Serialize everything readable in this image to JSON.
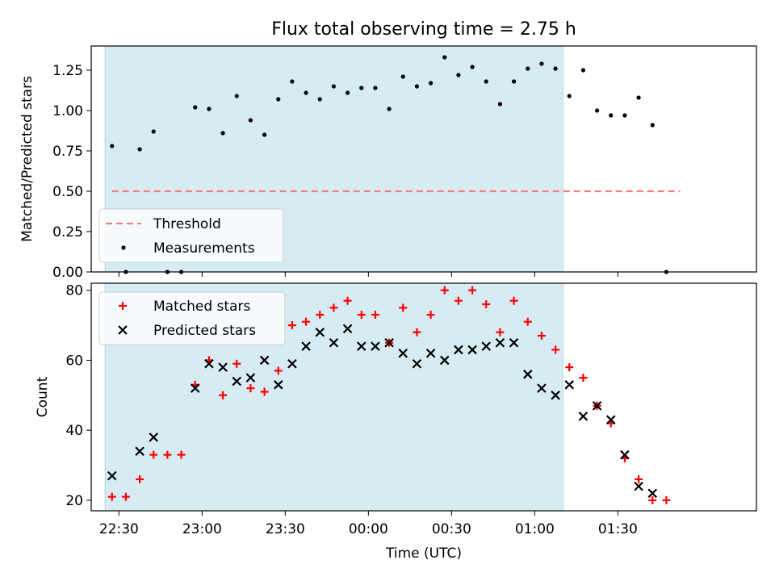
{
  "title": "Flux total observing time = 2.75 h",
  "x_ticks": [
    "22:30",
    "23:00",
    "23:30",
    "00:00",
    "00:30",
    "01:00",
    "01:30"
  ],
  "xlabel": "Time (UTC)",
  "colors": {
    "shade": "#add8e6",
    "threshold": "#f08080",
    "matched": "#ff0000",
    "predicted": "#000000",
    "measure": "#000000"
  },
  "chart_data": [
    {
      "type": "scatter",
      "ylabel": "Matched/Predicted stars",
      "ylim": [
        0,
        1.4
      ],
      "y_ticks": [
        "0.00",
        "0.25",
        "0.50",
        "0.75",
        "1.00",
        "1.25"
      ],
      "x_unit": "minutes after 22:30 UTC",
      "xlim": [
        -10,
        230
      ],
      "shaded_region": [
        -5,
        160.2
      ],
      "legend": {
        "position": "lower-left",
        "entries": [
          "Threshold",
          "Measurements"
        ]
      },
      "threshold": {
        "name": "Threshold",
        "y": 0.5,
        "x_range": [
          -2.5,
          202.5
        ]
      },
      "measurements": {
        "name": "Measurements",
        "points": [
          [
            -2.5,
            0.78
          ],
          [
            2.5,
            0.0
          ],
          [
            7.5,
            0.76
          ],
          [
            12.5,
            0.87
          ],
          [
            17.5,
            0.0
          ],
          [
            22.5,
            0.0
          ],
          [
            27.5,
            1.02
          ],
          [
            32.5,
            1.01
          ],
          [
            37.5,
            0.86
          ],
          [
            42.5,
            1.09
          ],
          [
            47.5,
            0.94
          ],
          [
            52.5,
            0.85
          ],
          [
            57.5,
            1.07
          ],
          [
            62.5,
            1.18
          ],
          [
            67.5,
            1.11
          ],
          [
            72.5,
            1.07
          ],
          [
            77.5,
            1.15
          ],
          [
            82.5,
            1.11
          ],
          [
            87.5,
            1.14
          ],
          [
            92.5,
            1.14
          ],
          [
            97.5,
            1.01
          ],
          [
            102.5,
            1.21
          ],
          [
            107.5,
            1.15
          ],
          [
            112.5,
            1.17
          ],
          [
            117.5,
            1.33
          ],
          [
            122.5,
            1.22
          ],
          [
            127.5,
            1.27
          ],
          [
            132.5,
            1.18
          ],
          [
            137.5,
            1.04
          ],
          [
            142.5,
            1.18
          ],
          [
            147.5,
            1.26
          ],
          [
            152.5,
            1.29
          ],
          [
            157.5,
            1.26
          ],
          [
            162.5,
            1.09
          ],
          [
            167.5,
            1.25
          ],
          [
            172.5,
            1.0
          ],
          [
            177.5,
            0.97
          ],
          [
            182.5,
            0.97
          ],
          [
            187.5,
            1.08
          ],
          [
            192.5,
            0.91
          ],
          [
            197.5,
            0.0
          ]
        ]
      }
    },
    {
      "type": "scatter",
      "ylabel": "Count",
      "ylim": [
        17,
        82
      ],
      "y_ticks": [
        "20",
        "40",
        "60",
        "80"
      ],
      "x_unit": "minutes after 22:30 UTC",
      "xlim": [
        -10,
        230
      ],
      "shaded_region": [
        -5,
        160.2
      ],
      "legend": {
        "position": "upper-left",
        "entries": [
          "Matched stars",
          "Predicted stars"
        ]
      },
      "series": [
        {
          "name": "Matched stars",
          "marker": "+",
          "points": [
            [
              -2.5,
              21
            ],
            [
              2.5,
              21
            ],
            [
              7.5,
              26
            ],
            [
              12.5,
              33
            ],
            [
              17.5,
              33
            ],
            [
              22.5,
              33
            ],
            [
              27.5,
              53
            ],
            [
              32.5,
              60
            ],
            [
              37.5,
              50
            ],
            [
              42.5,
              59
            ],
            [
              47.5,
              52
            ],
            [
              52.5,
              51
            ],
            [
              57.5,
              57
            ],
            [
              62.5,
              70
            ],
            [
              67.5,
              71
            ],
            [
              72.5,
              73
            ],
            [
              77.5,
              75
            ],
            [
              82.5,
              77
            ],
            [
              87.5,
              73
            ],
            [
              92.5,
              73
            ],
            [
              97.5,
              65
            ],
            [
              102.5,
              75
            ],
            [
              107.5,
              68
            ],
            [
              112.5,
              73
            ],
            [
              117.5,
              80
            ],
            [
              122.5,
              77
            ],
            [
              127.5,
              80
            ],
            [
              132.5,
              76
            ],
            [
              137.5,
              68
            ],
            [
              142.5,
              77
            ],
            [
              147.5,
              71
            ],
            [
              152.5,
              67
            ],
            [
              157.5,
              63
            ],
            [
              162.5,
              58
            ],
            [
              167.5,
              55
            ],
            [
              172.5,
              47
            ],
            [
              177.5,
              42
            ],
            [
              182.5,
              32
            ],
            [
              187.5,
              26
            ],
            [
              192.5,
              20
            ],
            [
              197.5,
              20
            ]
          ]
        },
        {
          "name": "Predicted stars",
          "marker": "x",
          "points": [
            [
              -2.5,
              27
            ],
            [
              7.5,
              34
            ],
            [
              12.5,
              38
            ],
            [
              27.5,
              52
            ],
            [
              32.5,
              59
            ],
            [
              37.5,
              58
            ],
            [
              42.5,
              54
            ],
            [
              47.5,
              55
            ],
            [
              52.5,
              60
            ],
            [
              57.5,
              53
            ],
            [
              62.5,
              59
            ],
            [
              67.5,
              64
            ],
            [
              72.5,
              68
            ],
            [
              77.5,
              65
            ],
            [
              82.5,
              69
            ],
            [
              87.5,
              64
            ],
            [
              92.5,
              64
            ],
            [
              97.5,
              65
            ],
            [
              102.5,
              62
            ],
            [
              107.5,
              59
            ],
            [
              112.5,
              62
            ],
            [
              117.5,
              60
            ],
            [
              122.5,
              63
            ],
            [
              127.5,
              63
            ],
            [
              132.5,
              64
            ],
            [
              137.5,
              65
            ],
            [
              142.5,
              65
            ],
            [
              147.5,
              56
            ],
            [
              152.5,
              52
            ],
            [
              157.5,
              50
            ],
            [
              162.5,
              53
            ],
            [
              167.5,
              44
            ],
            [
              172.5,
              47
            ],
            [
              177.5,
              43
            ],
            [
              182.5,
              33
            ],
            [
              187.5,
              24
            ],
            [
              192.5,
              22
            ]
          ]
        }
      ]
    }
  ]
}
